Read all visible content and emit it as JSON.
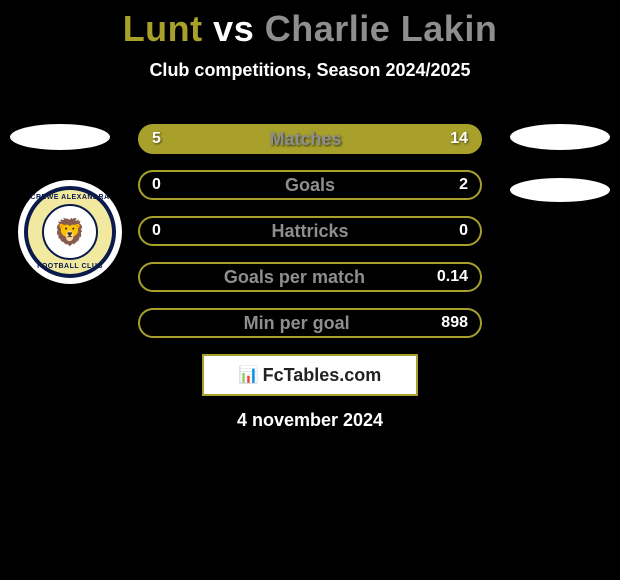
{
  "title": {
    "player1": "Lunt",
    "vs": "vs",
    "player2": "Charlie Lakin",
    "player1_color": "#a8a02a",
    "player2_color": "#8d8f8e",
    "vs_color": "#ffffff"
  },
  "subtitle": "Club competitions, Season 2024/2025",
  "crest": {
    "top_text": "CREWE ALEXANDRA",
    "bottom_text": "FOOTBALL CLUB",
    "emblem": "🦁"
  },
  "bars": {
    "bar_bg_filled": "#a8a02a",
    "bar_bg_empty": "#000000",
    "bar_border": "#a8a02a",
    "label_color": "#8d8f8e",
    "rows": [
      {
        "label": "Matches",
        "left": "5",
        "right": "14",
        "filled": true
      },
      {
        "label": "Goals",
        "left": "0",
        "right": "2",
        "filled": false
      },
      {
        "label": "Hattricks",
        "left": "0",
        "right": "0",
        "filled": false
      },
      {
        "label": "Goals per match",
        "left": "",
        "right": "0.14",
        "filled": false
      },
      {
        "label": "Min per goal",
        "left": "",
        "right": "898",
        "filled": false
      }
    ]
  },
  "branding": {
    "icon": "📊",
    "text": "FcTables.com"
  },
  "date_text": "4 november 2024"
}
